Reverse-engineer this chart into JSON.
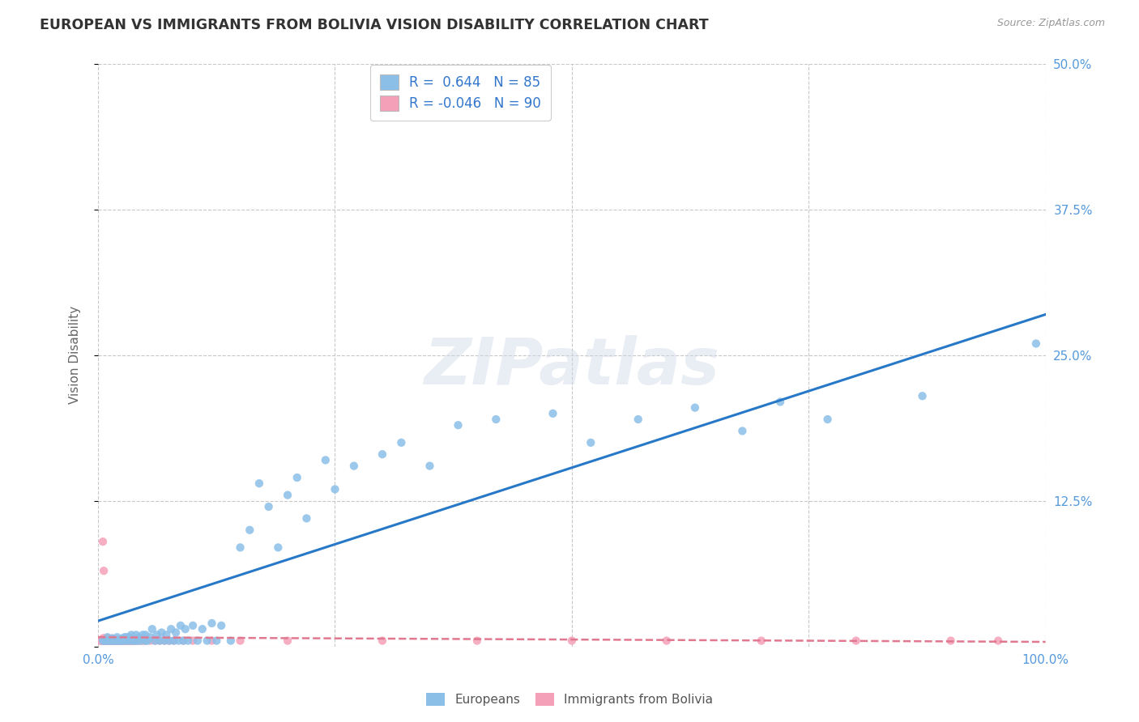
{
  "title": "EUROPEAN VS IMMIGRANTS FROM BOLIVIA VISION DISABILITY CORRELATION CHART",
  "source": "Source: ZipAtlas.com",
  "ylabel": "Vision Disability",
  "watermark": "ZIPatlas",
  "xlim": [
    0.0,
    1.0
  ],
  "ylim": [
    0.0,
    0.5
  ],
  "xticks": [
    0.0,
    0.25,
    0.5,
    0.75,
    1.0
  ],
  "xticklabels": [
    "0.0%",
    "",
    "",
    "",
    "100.0%"
  ],
  "yticks": [
    0.0,
    0.125,
    0.25,
    0.375,
    0.5
  ],
  "yticklabels": [
    "",
    "12.5%",
    "25.0%",
    "37.5%",
    "50.0%"
  ],
  "R_blue": 0.644,
  "N_blue": 85,
  "R_pink": -0.046,
  "N_pink": 90,
  "blue_color": "#8bbfe8",
  "pink_color": "#f4a0b8",
  "line_blue": "#2878c8",
  "line_pink": "#e07890",
  "grid_color": "#c8c8c8",
  "title_color": "#333333",
  "axis_label_color": "#5599dd",
  "legend_label_color": "#3377cc",
  "blue_line_x0": 0.0,
  "blue_line_y0": 0.022,
  "blue_line_x1": 1.0,
  "blue_line_y1": 0.285,
  "pink_line_x0": 0.0,
  "pink_line_y0": 0.008,
  "pink_line_x1": 1.0,
  "pink_line_y1": 0.004,
  "blue_scatter_x": [
    0.005,
    0.007,
    0.008,
    0.01,
    0.01,
    0.012,
    0.013,
    0.015,
    0.015,
    0.017,
    0.018,
    0.02,
    0.02,
    0.022,
    0.023,
    0.025,
    0.025,
    0.027,
    0.028,
    0.03,
    0.03,
    0.032,
    0.033,
    0.035,
    0.035,
    0.038,
    0.04,
    0.04,
    0.042,
    0.043,
    0.045,
    0.047,
    0.05,
    0.05,
    0.052,
    0.055,
    0.057,
    0.06,
    0.062,
    0.065,
    0.067,
    0.07,
    0.072,
    0.075,
    0.077,
    0.08,
    0.082,
    0.085,
    0.087,
    0.09,
    0.092,
    0.095,
    0.1,
    0.105,
    0.11,
    0.115,
    0.12,
    0.125,
    0.13,
    0.14,
    0.15,
    0.16,
    0.17,
    0.18,
    0.19,
    0.2,
    0.21,
    0.22,
    0.24,
    0.25,
    0.27,
    0.3,
    0.32,
    0.35,
    0.38,
    0.42,
    0.48,
    0.52,
    0.57,
    0.63,
    0.68,
    0.72,
    0.77,
    0.87,
    0.99
  ],
  "blue_scatter_y": [
    0.005,
    0.005,
    0.005,
    0.005,
    0.008,
    0.005,
    0.005,
    0.005,
    0.007,
    0.005,
    0.005,
    0.005,
    0.008,
    0.005,
    0.005,
    0.005,
    0.007,
    0.005,
    0.008,
    0.005,
    0.008,
    0.005,
    0.008,
    0.005,
    0.01,
    0.005,
    0.005,
    0.01,
    0.005,
    0.008,
    0.005,
    0.01,
    0.005,
    0.01,
    0.005,
    0.008,
    0.015,
    0.005,
    0.01,
    0.005,
    0.012,
    0.005,
    0.01,
    0.005,
    0.015,
    0.005,
    0.012,
    0.005,
    0.018,
    0.005,
    0.015,
    0.005,
    0.018,
    0.005,
    0.015,
    0.005,
    0.02,
    0.005,
    0.018,
    0.005,
    0.085,
    0.1,
    0.14,
    0.12,
    0.085,
    0.13,
    0.145,
    0.11,
    0.16,
    0.135,
    0.155,
    0.165,
    0.175,
    0.155,
    0.19,
    0.195,
    0.2,
    0.175,
    0.195,
    0.205,
    0.185,
    0.21,
    0.195,
    0.215,
    0.26
  ],
  "pink_scatter_x": [
    0.002,
    0.003,
    0.004,
    0.005,
    0.005,
    0.006,
    0.006,
    0.007,
    0.007,
    0.008,
    0.008,
    0.009,
    0.009,
    0.01,
    0.01,
    0.011,
    0.011,
    0.012,
    0.012,
    0.013,
    0.013,
    0.014,
    0.014,
    0.015,
    0.015,
    0.016,
    0.016,
    0.017,
    0.017,
    0.018,
    0.018,
    0.019,
    0.019,
    0.02,
    0.02,
    0.021,
    0.021,
    0.022,
    0.022,
    0.023,
    0.023,
    0.024,
    0.024,
    0.025,
    0.025,
    0.026,
    0.027,
    0.028,
    0.029,
    0.03,
    0.031,
    0.032,
    0.033,
    0.034,
    0.035,
    0.036,
    0.037,
    0.038,
    0.039,
    0.04,
    0.042,
    0.044,
    0.046,
    0.048,
    0.05,
    0.055,
    0.06,
    0.065,
    0.07,
    0.075,
    0.08,
    0.09,
    0.1,
    0.12,
    0.15,
    0.2,
    0.3,
    0.4,
    0.5,
    0.6,
    0.7,
    0.8,
    0.9,
    0.95,
    0.005,
    0.006,
    0.007,
    0.008,
    0.009,
    0.01
  ],
  "pink_scatter_y": [
    0.005,
    0.005,
    0.005,
    0.005,
    0.007,
    0.005,
    0.007,
    0.005,
    0.007,
    0.005,
    0.007,
    0.005,
    0.007,
    0.005,
    0.007,
    0.005,
    0.006,
    0.005,
    0.006,
    0.005,
    0.006,
    0.005,
    0.006,
    0.005,
    0.007,
    0.005,
    0.006,
    0.005,
    0.006,
    0.005,
    0.006,
    0.005,
    0.006,
    0.005,
    0.006,
    0.005,
    0.006,
    0.005,
    0.006,
    0.005,
    0.006,
    0.005,
    0.005,
    0.005,
    0.006,
    0.005,
    0.005,
    0.005,
    0.005,
    0.005,
    0.005,
    0.005,
    0.005,
    0.005,
    0.005,
    0.005,
    0.005,
    0.005,
    0.005,
    0.005,
    0.005,
    0.005,
    0.005,
    0.005,
    0.005,
    0.005,
    0.005,
    0.005,
    0.005,
    0.005,
    0.005,
    0.005,
    0.005,
    0.005,
    0.005,
    0.005,
    0.005,
    0.005,
    0.005,
    0.005,
    0.005,
    0.005,
    0.005,
    0.005,
    0.09,
    0.065,
    0.005,
    0.005,
    0.005,
    0.005
  ]
}
